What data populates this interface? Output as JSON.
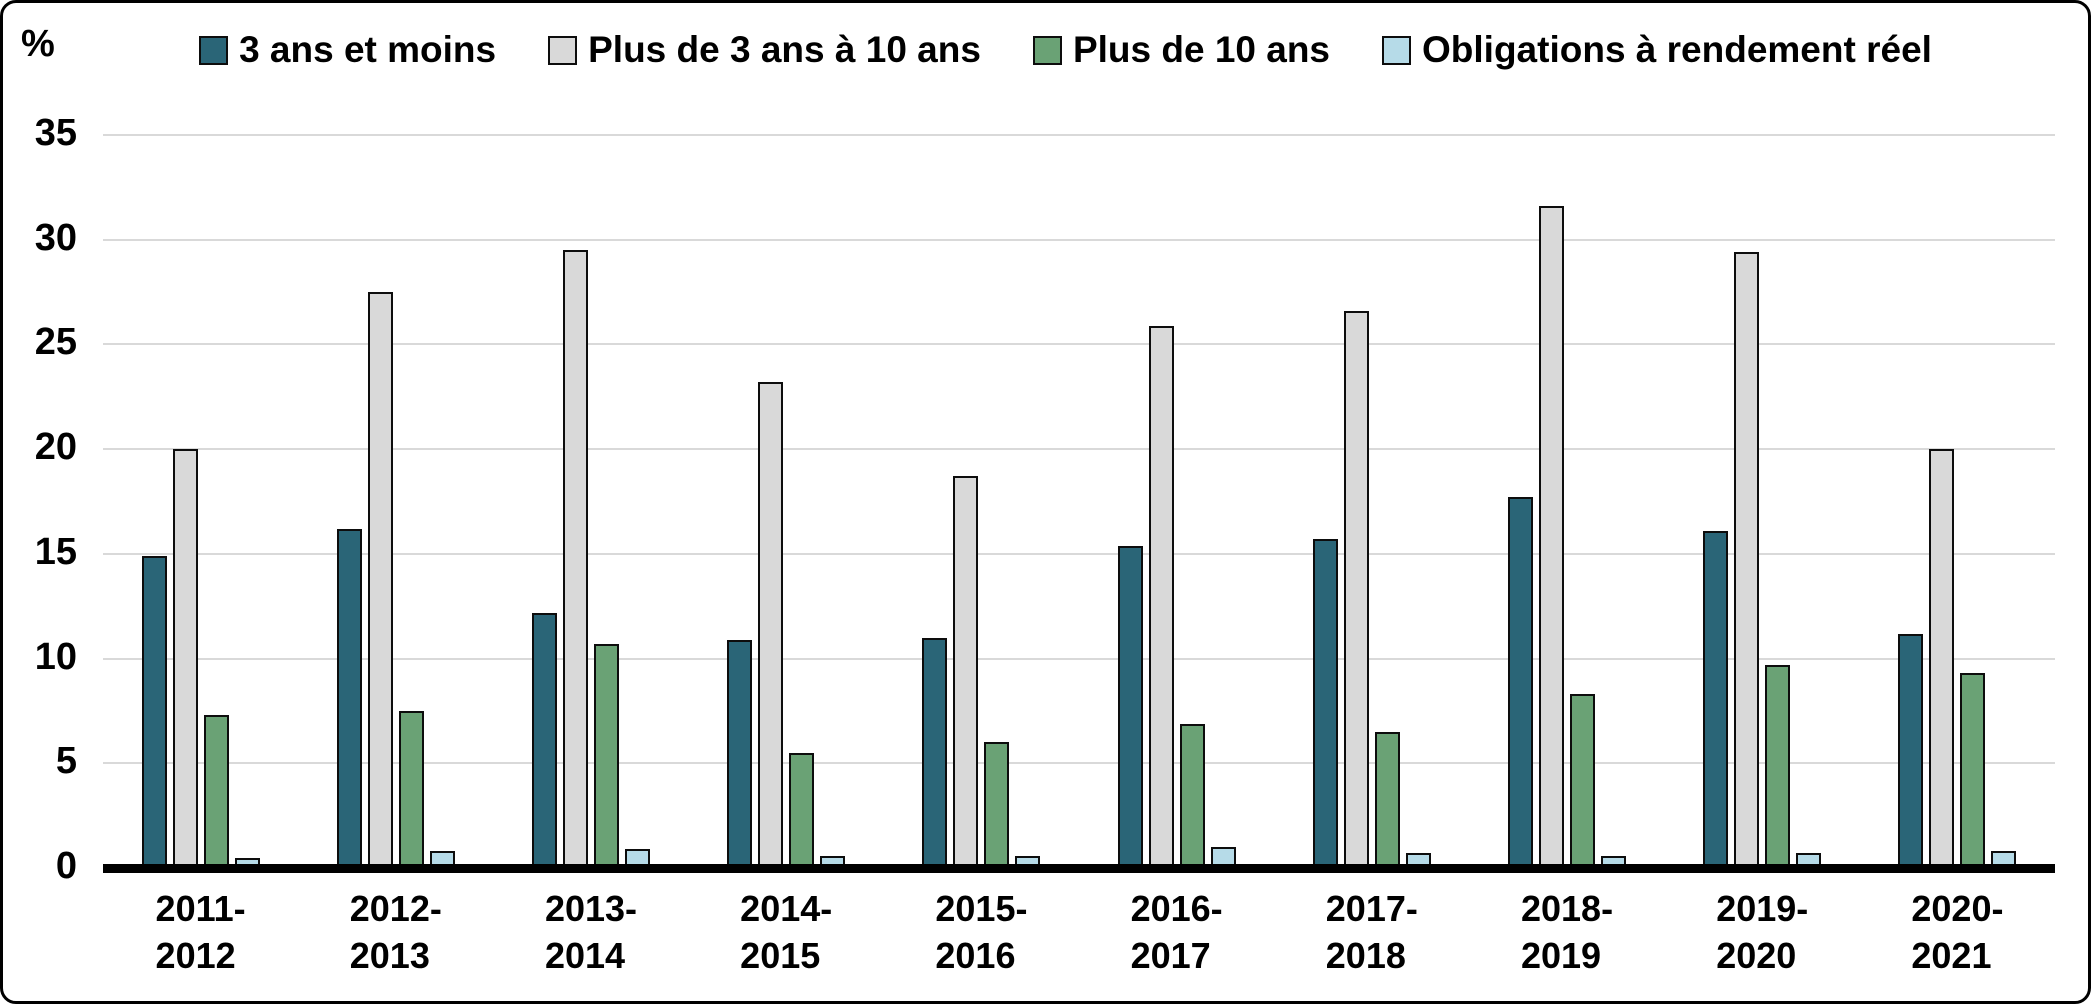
{
  "chart_data": {
    "type": "bar",
    "title": "",
    "ylabel": "%",
    "xlabel": "",
    "ylim": [
      0,
      35
    ],
    "yticks": [
      0,
      5,
      10,
      15,
      20,
      25,
      30,
      35
    ],
    "grid": true,
    "legend_position": "top",
    "categories": [
      [
        "2011-",
        "2012"
      ],
      [
        "2012-",
        "2013"
      ],
      [
        "2013-",
        "2014"
      ],
      [
        "2014-",
        "2015"
      ],
      [
        "2015-",
        "2016"
      ],
      [
        "2016-",
        "2017"
      ],
      [
        "2017-",
        "2018"
      ],
      [
        "2018-",
        "2019"
      ],
      [
        "2019-",
        "2020"
      ],
      [
        "2020-",
        "2021"
      ]
    ],
    "series": [
      {
        "name": "3 ans et moins",
        "color": "#2a6577",
        "values": [
          14.8,
          16.1,
          12.1,
          10.8,
          10.9,
          15.3,
          15.6,
          17.6,
          16.0,
          11.1
        ]
      },
      {
        "name": "Plus de 3 ans à 10 ans",
        "color": "#d9d9d9",
        "values": [
          19.9,
          27.4,
          29.4,
          23.1,
          18.6,
          25.8,
          26.5,
          31.5,
          29.3,
          19.9
        ]
      },
      {
        "name": "Plus de 10 ans",
        "color": "#6aa275",
        "values": [
          7.2,
          7.4,
          10.6,
          5.4,
          5.9,
          6.8,
          6.4,
          8.2,
          9.6,
          9.2
        ]
      },
      {
        "name": "Obligations à rendement réel",
        "color": "#b6dbe8",
        "values": [
          0.4,
          0.7,
          0.8,
          0.5,
          0.5,
          0.9,
          0.6,
          0.5,
          0.6,
          0.7
        ]
      }
    ],
    "colors": {
      "bar_outline": "#0d0d0d",
      "gridline": "#d9d9d9",
      "axis_line": "#000000",
      "background": "#ffffff",
      "frame": "#000000"
    }
  }
}
